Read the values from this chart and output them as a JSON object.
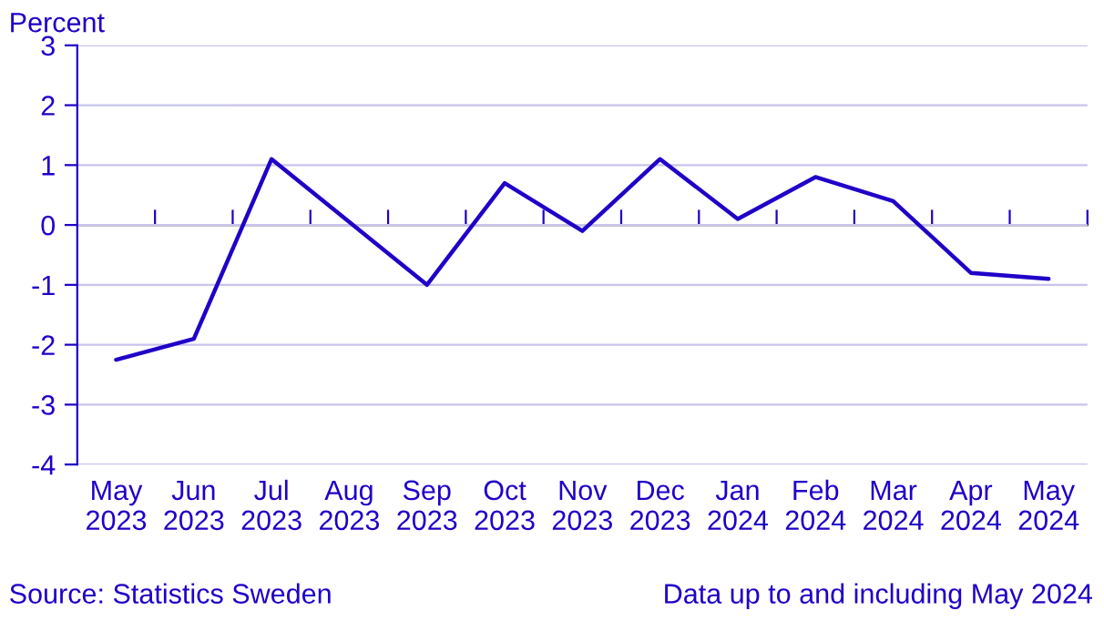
{
  "chart_data": {
    "type": "line",
    "ylabel": "Percent",
    "categories": [
      "May\n2023",
      "Jun\n2023",
      "Jul\n2023",
      "Aug\n2023",
      "Sep\n2023",
      "Oct\n2023",
      "Nov\n2023",
      "Dec\n2023",
      "Jan\n2024",
      "Feb\n2024",
      "Mar\n2024",
      "Apr\n2024",
      "May\n2024"
    ],
    "series": [
      {
        "color": "#1f00c8",
        "values": [
          -2.25,
          -1.9,
          1.1,
          0.05,
          -1.0,
          0.7,
          -0.1,
          1.1,
          0.1,
          0.8,
          0.4,
          -0.8,
          -0.9
        ]
      }
    ],
    "ylim": [
      -4,
      3
    ],
    "yticks": [
      -4,
      -3,
      -2,
      -1,
      0,
      1,
      2,
      3
    ],
    "grid": "y",
    "marker": "none",
    "line_style": "solid",
    "annotations": [
      "Source: Statistics Sweden",
      "Data up to and including May 2024"
    ]
  }
}
